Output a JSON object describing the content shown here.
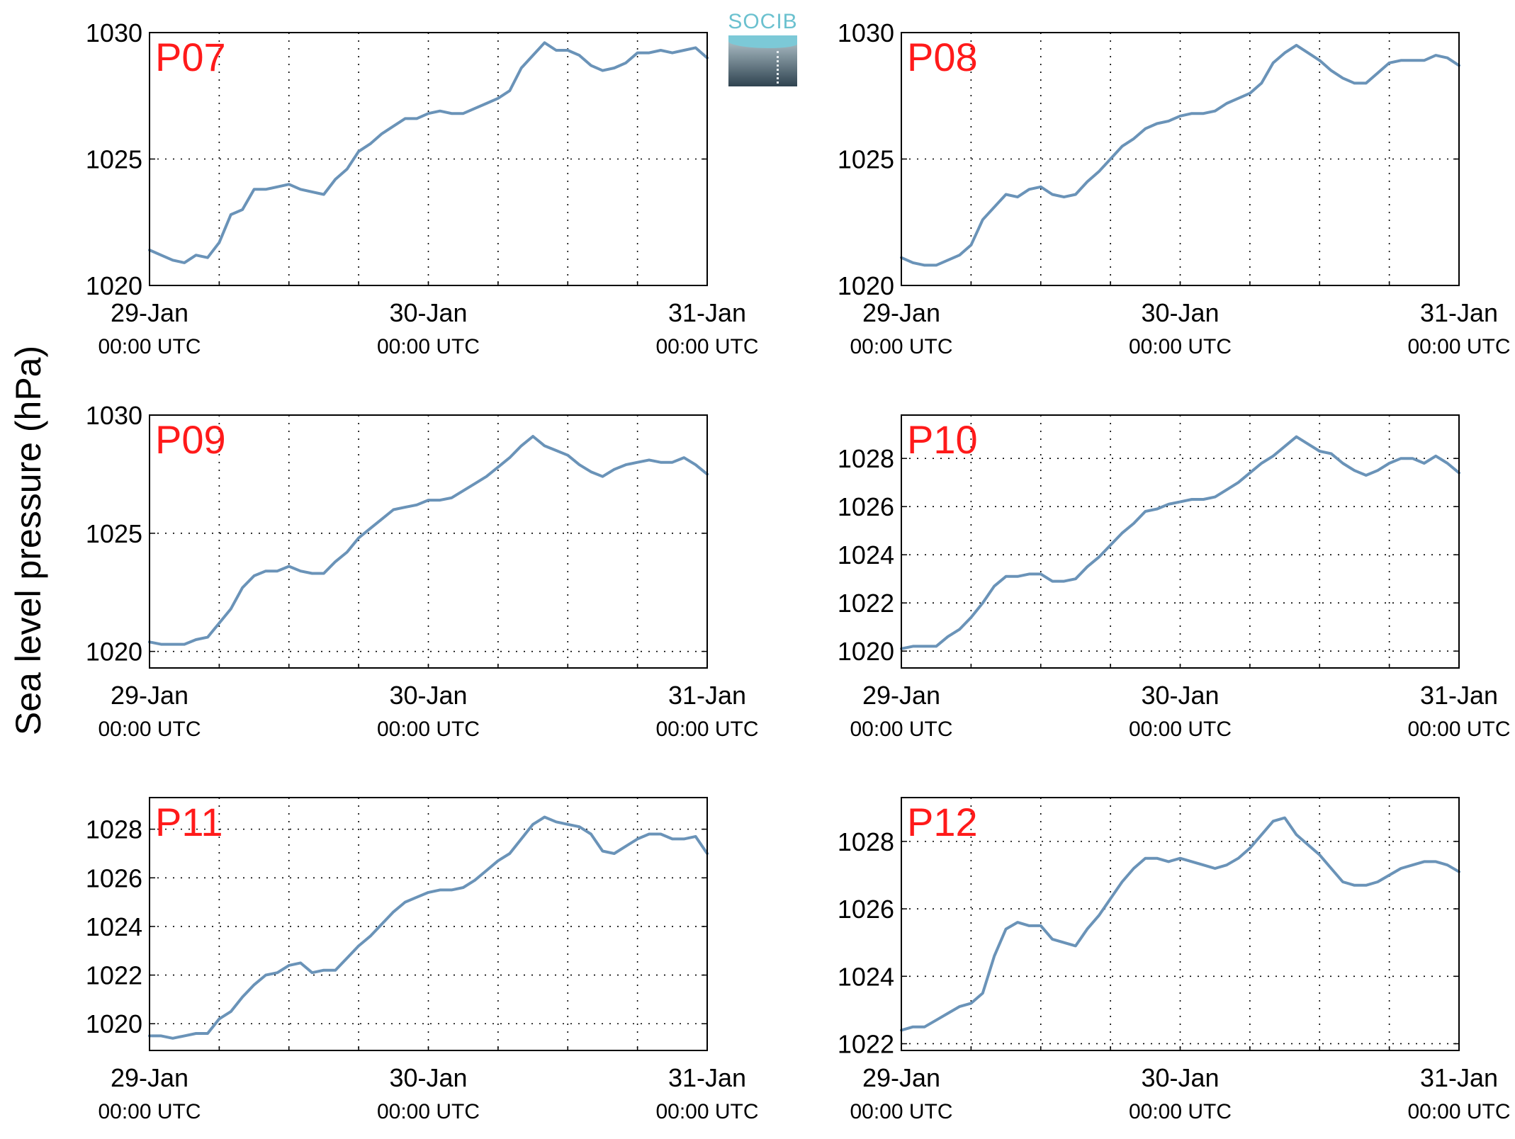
{
  "figure": {
    "ylabel": "Sea level pressure (hPa)",
    "logo_text": "SOCIB"
  },
  "colors": {
    "line": "#6a93b8",
    "station_label": "#ff1a1a",
    "axes": "#000000",
    "grid": "#000000"
  },
  "chart_data": [
    {
      "type": "line",
      "title": "P07",
      "x_ticks": [
        {
          "date": "29-Jan",
          "time": "00:00 UTC"
        },
        {
          "date": "30-Jan",
          "time": "00:00 UTC"
        },
        {
          "date": "31-Jan",
          "time": "00:00 UTC"
        }
      ],
      "x_unit": "hours since 29-Jan 00:00 UTC",
      "xlim": [
        0,
        48
      ],
      "ylim": [
        1020,
        1030
      ],
      "yticks": [
        1020,
        1025,
        1030
      ],
      "grid": true,
      "x": [
        0,
        1,
        2,
        3,
        4,
        5,
        6,
        7,
        8,
        9,
        10,
        11,
        12,
        13,
        14,
        15,
        16,
        17,
        18,
        19,
        20,
        21,
        22,
        23,
        24,
        25,
        26,
        27,
        28,
        29,
        30,
        31,
        32,
        33,
        34,
        35,
        36,
        37,
        38,
        39,
        40,
        41,
        42,
        43,
        44,
        45,
        46,
        47,
        48
      ],
      "values": [
        1021.4,
        1021.2,
        1021.0,
        1020.9,
        1021.2,
        1021.1,
        1021.7,
        1022.8,
        1023.0,
        1023.8,
        1023.8,
        1023.9,
        1024.0,
        1023.8,
        1023.7,
        1023.6,
        1024.2,
        1024.6,
        1025.3,
        1025.6,
        1026.0,
        1026.3,
        1026.6,
        1026.6,
        1026.8,
        1026.9,
        1026.8,
        1026.8,
        1027.0,
        1027.2,
        1027.4,
        1027.7,
        1028.6,
        1029.1,
        1029.6,
        1029.3,
        1029.3,
        1029.1,
        1028.7,
        1028.5,
        1028.6,
        1028.8,
        1029.2,
        1029.2,
        1029.3,
        1029.2,
        1029.3,
        1029.4,
        1029.0
      ]
    },
    {
      "type": "line",
      "title": "P08",
      "x_ticks": [
        {
          "date": "29-Jan",
          "time": "00:00 UTC"
        },
        {
          "date": "30-Jan",
          "time": "00:00 UTC"
        },
        {
          "date": "31-Jan",
          "time": "00:00 UTC"
        }
      ],
      "x_unit": "hours since 29-Jan 00:00 UTC",
      "xlim": [
        0,
        48
      ],
      "ylim": [
        1020,
        1030
      ],
      "yticks": [
        1020,
        1025,
        1030
      ],
      "grid": true,
      "x": [
        0,
        1,
        2,
        3,
        4,
        5,
        6,
        7,
        8,
        9,
        10,
        11,
        12,
        13,
        14,
        15,
        16,
        17,
        18,
        19,
        20,
        21,
        22,
        23,
        24,
        25,
        26,
        27,
        28,
        29,
        30,
        31,
        32,
        33,
        34,
        35,
        36,
        37,
        38,
        39,
        40,
        41,
        42,
        43,
        44,
        45,
        46,
        47,
        48
      ],
      "values": [
        1021.1,
        1020.9,
        1020.8,
        1020.8,
        1021.0,
        1021.2,
        1021.6,
        1022.6,
        1023.1,
        1023.6,
        1023.5,
        1023.8,
        1023.9,
        1023.6,
        1023.5,
        1023.6,
        1024.1,
        1024.5,
        1025.0,
        1025.5,
        1025.8,
        1026.2,
        1026.4,
        1026.5,
        1026.7,
        1026.8,
        1026.8,
        1026.9,
        1027.2,
        1027.4,
        1027.6,
        1028.0,
        1028.8,
        1029.2,
        1029.5,
        1029.2,
        1028.9,
        1028.5,
        1028.2,
        1028.0,
        1028.0,
        1028.4,
        1028.8,
        1028.9,
        1028.9,
        1028.9,
        1029.1,
        1029.0,
        1028.7
      ]
    },
    {
      "type": "line",
      "title": "P09",
      "x_ticks": [
        {
          "date": "29-Jan",
          "time": "00:00 UTC"
        },
        {
          "date": "30-Jan",
          "time": "00:00 UTC"
        },
        {
          "date": "31-Jan",
          "time": "00:00 UTC"
        }
      ],
      "x_unit": "hours since 29-Jan 00:00 UTC",
      "xlim": [
        0,
        48
      ],
      "ylim": [
        1019.3,
        1030
      ],
      "yticks": [
        1020,
        1025,
        1030
      ],
      "grid": true,
      "x": [
        0,
        1,
        2,
        3,
        4,
        5,
        6,
        7,
        8,
        9,
        10,
        11,
        12,
        13,
        14,
        15,
        16,
        17,
        18,
        19,
        20,
        21,
        22,
        23,
        24,
        25,
        26,
        27,
        28,
        29,
        30,
        31,
        32,
        33,
        34,
        35,
        36,
        37,
        38,
        39,
        40,
        41,
        42,
        43,
        44,
        45,
        46,
        47,
        48
      ],
      "values": [
        1020.4,
        1020.3,
        1020.3,
        1020.3,
        1020.5,
        1020.6,
        1021.2,
        1021.8,
        1022.7,
        1023.2,
        1023.4,
        1023.4,
        1023.6,
        1023.4,
        1023.3,
        1023.3,
        1023.8,
        1024.2,
        1024.8,
        1025.2,
        1025.6,
        1026.0,
        1026.1,
        1026.2,
        1026.4,
        1026.4,
        1026.5,
        1026.8,
        1027.1,
        1027.4,
        1027.8,
        1028.2,
        1028.7,
        1029.1,
        1028.7,
        1028.5,
        1028.3,
        1027.9,
        1027.6,
        1027.4,
        1027.7,
        1027.9,
        1028.0,
        1028.1,
        1028.0,
        1028.0,
        1028.2,
        1027.9,
        1027.5
      ]
    },
    {
      "type": "line",
      "title": "P10",
      "x_ticks": [
        {
          "date": "29-Jan",
          "time": "00:00 UTC"
        },
        {
          "date": "30-Jan",
          "time": "00:00 UTC"
        },
        {
          "date": "31-Jan",
          "time": "00:00 UTC"
        }
      ],
      "x_unit": "hours since 29-Jan 00:00 UTC",
      "xlim": [
        0,
        48
      ],
      "ylim": [
        1019.3,
        1029.8
      ],
      "yticks": [
        1020,
        1022,
        1024,
        1026,
        1028
      ],
      "grid": true,
      "x": [
        0,
        1,
        2,
        3,
        4,
        5,
        6,
        7,
        8,
        9,
        10,
        11,
        12,
        13,
        14,
        15,
        16,
        17,
        18,
        19,
        20,
        21,
        22,
        23,
        24,
        25,
        26,
        27,
        28,
        29,
        30,
        31,
        32,
        33,
        34,
        35,
        36,
        37,
        38,
        39,
        40,
        41,
        42,
        43,
        44,
        45,
        46,
        47,
        48
      ],
      "values": [
        1020.1,
        1020.2,
        1020.2,
        1020.2,
        1020.6,
        1020.9,
        1021.4,
        1022.0,
        1022.7,
        1023.1,
        1023.1,
        1023.2,
        1023.2,
        1022.9,
        1022.9,
        1023.0,
        1023.5,
        1023.9,
        1024.4,
        1024.9,
        1025.3,
        1025.8,
        1025.9,
        1026.1,
        1026.2,
        1026.3,
        1026.3,
        1026.4,
        1026.7,
        1027.0,
        1027.4,
        1027.8,
        1028.1,
        1028.5,
        1028.9,
        1028.6,
        1028.3,
        1028.2,
        1027.8,
        1027.5,
        1027.3,
        1027.5,
        1027.8,
        1028.0,
        1028.0,
        1027.8,
        1028.1,
        1027.8,
        1027.4
      ]
    },
    {
      "type": "line",
      "title": "P11",
      "x_ticks": [
        {
          "date": "29-Jan",
          "time": "00:00 UTC"
        },
        {
          "date": "30-Jan",
          "time": "00:00 UTC"
        },
        {
          "date": "31-Jan",
          "time": "00:00 UTC"
        }
      ],
      "x_unit": "hours since 29-Jan 00:00 UTC",
      "xlim": [
        0,
        48
      ],
      "ylim": [
        1018.9,
        1029.3
      ],
      "yticks": [
        1020,
        1022,
        1024,
        1026,
        1028
      ],
      "grid": true,
      "x": [
        0,
        1,
        2,
        3,
        4,
        5,
        6,
        7,
        8,
        9,
        10,
        11,
        12,
        13,
        14,
        15,
        16,
        17,
        18,
        19,
        20,
        21,
        22,
        23,
        24,
        25,
        26,
        27,
        28,
        29,
        30,
        31,
        32,
        33,
        34,
        35,
        36,
        37,
        38,
        39,
        40,
        41,
        42,
        43,
        44,
        45,
        46,
        47,
        48
      ],
      "values": [
        1019.5,
        1019.5,
        1019.4,
        1019.5,
        1019.6,
        1019.6,
        1020.2,
        1020.5,
        1021.1,
        1021.6,
        1022.0,
        1022.1,
        1022.4,
        1022.5,
        1022.1,
        1022.2,
        1022.2,
        1022.7,
        1023.2,
        1023.6,
        1024.1,
        1024.6,
        1025.0,
        1025.2,
        1025.4,
        1025.5,
        1025.5,
        1025.6,
        1025.9,
        1026.3,
        1026.7,
        1027.0,
        1027.6,
        1028.2,
        1028.5,
        1028.3,
        1028.2,
        1028.1,
        1027.8,
        1027.1,
        1027.0,
        1027.3,
        1027.6,
        1027.8,
        1027.8,
        1027.6,
        1027.6,
        1027.7,
        1027.0
      ]
    },
    {
      "type": "line",
      "title": "P12",
      "x_ticks": [
        {
          "date": "29-Jan",
          "time": "00:00 UTC"
        },
        {
          "date": "30-Jan",
          "time": "00:00 UTC"
        },
        {
          "date": "31-Jan",
          "time": "00:00 UTC"
        }
      ],
      "x_unit": "hours since 29-Jan 00:00 UTC",
      "xlim": [
        0,
        48
      ],
      "ylim": [
        1021.8,
        1029.3
      ],
      "yticks": [
        1022,
        1024,
        1026,
        1028
      ],
      "grid": true,
      "x": [
        0,
        1,
        2,
        3,
        4,
        5,
        6,
        7,
        8,
        9,
        10,
        11,
        12,
        13,
        14,
        15,
        16,
        17,
        18,
        19,
        20,
        21,
        22,
        23,
        24,
        25,
        26,
        27,
        28,
        29,
        30,
        31,
        32,
        33,
        34,
        35,
        36,
        37,
        38,
        39,
        40,
        41,
        42,
        43,
        44,
        45,
        46,
        47,
        48
      ],
      "values": [
        1022.4,
        1022.5,
        1022.5,
        1022.7,
        1022.9,
        1023.1,
        1023.2,
        1023.5,
        1024.6,
        1025.4,
        1025.6,
        1025.5,
        1025.5,
        1025.1,
        1025.0,
        1024.9,
        1025.4,
        1025.8,
        1026.3,
        1026.8,
        1027.2,
        1027.5,
        1027.5,
        1027.4,
        1027.5,
        1027.4,
        1027.3,
        1027.2,
        1027.3,
        1027.5,
        1027.8,
        1028.2,
        1028.6,
        1028.7,
        1028.2,
        1027.9,
        1027.6,
        1027.2,
        1026.8,
        1026.7,
        1026.7,
        1026.8,
        1027.0,
        1027.2,
        1027.3,
        1027.4,
        1027.4,
        1027.3,
        1027.1
      ]
    }
  ]
}
